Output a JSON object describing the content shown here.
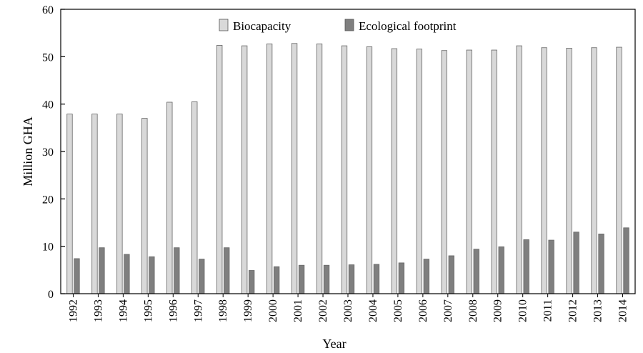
{
  "chart_data": {
    "type": "bar",
    "xlabel": "Year",
    "ylabel": "Million GHA",
    "ylim": [
      0,
      60
    ],
    "yticks": [
      0,
      10,
      20,
      30,
      40,
      50,
      60
    ],
    "grid": false,
    "legend_position": "top-center",
    "categories": [
      "1992",
      "1993",
      "1994",
      "1995",
      "1996",
      "1997",
      "1998",
      "1999",
      "2000",
      "2001",
      "2002",
      "2003",
      "2004",
      "2005",
      "2006",
      "2007",
      "2008",
      "2009",
      "2010",
      "2011",
      "2012",
      "2013",
      "2014"
    ],
    "series": [
      {
        "name": "Biocapacity",
        "color": "#d9d9d9",
        "values": [
          37.9,
          37.9,
          37.9,
          37.0,
          40.4,
          40.5,
          52.4,
          52.3,
          52.7,
          52.8,
          52.7,
          52.3,
          52.1,
          51.7,
          51.6,
          51.3,
          51.4,
          51.4,
          52.3,
          51.9,
          51.8,
          51.9,
          52.0
        ]
      },
      {
        "name": "Ecological footprint",
        "color": "#7f7f7f",
        "values": [
          7.4,
          9.7,
          8.3,
          7.8,
          9.7,
          7.3,
          9.7,
          4.9,
          5.7,
          6.0,
          6.0,
          6.1,
          6.2,
          6.5,
          7.3,
          8.0,
          9.4,
          9.9,
          11.4,
          11.3,
          13.0,
          12.6,
          13.9
        ]
      }
    ]
  }
}
